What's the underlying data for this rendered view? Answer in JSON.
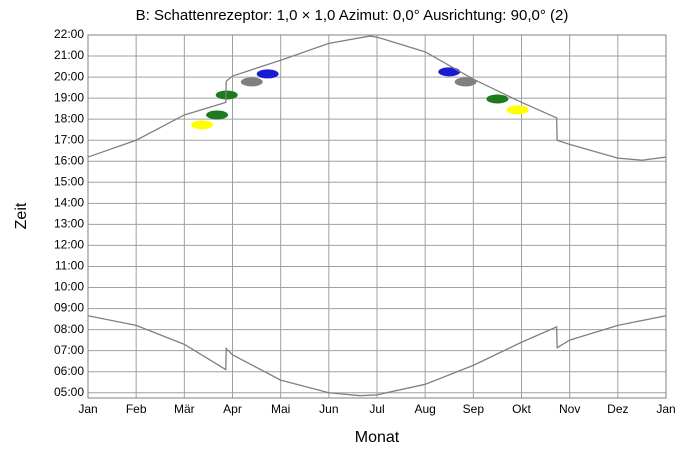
{
  "chart_data": {
    "type": "line",
    "title": "B: Schattenrezeptor: 1,0 × 1,0  Azimut: 0,0°  Ausrichtung: 90,0° (2)",
    "xlabel": "Monat",
    "ylabel": "Zeit",
    "xlim": [
      0,
      12
    ],
    "xticks": [
      {
        "value": 0,
        "label": "Jan"
      },
      {
        "value": 1,
        "label": "Feb"
      },
      {
        "value": 2,
        "label": "Mär"
      },
      {
        "value": 3,
        "label": "Apr"
      },
      {
        "value": 4,
        "label": "Mai"
      },
      {
        "value": 5,
        "label": "Jun"
      },
      {
        "value": 6,
        "label": "Jul"
      },
      {
        "value": 7,
        "label": "Aug"
      },
      {
        "value": 8,
        "label": "Sep"
      },
      {
        "value": 9,
        "label": "Okt"
      },
      {
        "value": 10,
        "label": "Nov"
      },
      {
        "value": 11,
        "label": "Dez"
      },
      {
        "value": 12,
        "label": "Jan"
      }
    ],
    "ylim": [
      4.75,
      22
    ],
    "yticks": [
      {
        "value": 22,
        "label": "22:00"
      },
      {
        "value": 21,
        "label": "21:00"
      },
      {
        "value": 20,
        "label": "20:00"
      },
      {
        "value": 19,
        "label": "19:00"
      },
      {
        "value": 18,
        "label": "18:00"
      },
      {
        "value": 17,
        "label": "17:00"
      },
      {
        "value": 16,
        "label": "16:00"
      },
      {
        "value": 15,
        "label": "15:00"
      },
      {
        "value": 14,
        "label": "14:00"
      },
      {
        "value": 13,
        "label": "13:00"
      },
      {
        "value": 12,
        "label": "12:00"
      },
      {
        "value": 11,
        "label": "11:00"
      },
      {
        "value": 10,
        "label": "10:00"
      },
      {
        "value": 9,
        "label": "09:00"
      },
      {
        "value": 8,
        "label": "08:00"
      },
      {
        "value": 7,
        "label": "07:00"
      },
      {
        "value": 6,
        "label": "06:00"
      },
      {
        "value": 5,
        "label": "05:00"
      }
    ],
    "grid": true,
    "series": [
      {
        "color": "#808080",
        "x": [
          0,
          1,
          2,
          2.86,
          2.87,
          3,
          4,
          5,
          5.85,
          6,
          7,
          8,
          9,
          9.73,
          9.74,
          10,
          11,
          11.5,
          12
        ],
        "values": [
          16.2,
          17.0,
          18.2,
          18.8,
          19.8,
          20.05,
          20.8,
          21.6,
          21.95,
          21.9,
          21.2,
          19.9,
          18.8,
          18.06,
          17.0,
          16.8,
          16.15,
          16.05,
          16.2
        ]
      },
      {
        "color": "#808080",
        "x": [
          0,
          1,
          2,
          2.86,
          2.87,
          3,
          4,
          5,
          5.65,
          6,
          7,
          8,
          9,
          9.73,
          9.74,
          10,
          11,
          12
        ],
        "values": [
          8.66,
          8.2,
          7.3,
          6.1,
          7.1,
          6.8,
          5.6,
          5.0,
          4.86,
          4.9,
          5.4,
          6.3,
          7.4,
          8.13,
          7.14,
          7.5,
          8.2,
          8.66
        ]
      }
    ],
    "points": [
      {
        "color": "#ffff00",
        "x": [
          2.37,
          8.92
        ],
        "values": [
          17.73,
          18.44
        ]
      },
      {
        "color": "#1e7a1e",
        "x": [
          2.68,
          2.88,
          8.5
        ],
        "values": [
          18.2,
          19.15,
          18.96
        ]
      },
      {
        "color": "#808080",
        "x": [
          3.4,
          7.84
        ],
        "values": [
          19.77,
          19.77
        ]
      },
      {
        "color": "#1a1ad0",
        "x": [
          3.73,
          7.5
        ],
        "values": [
          20.15,
          20.25
        ]
      }
    ]
  }
}
